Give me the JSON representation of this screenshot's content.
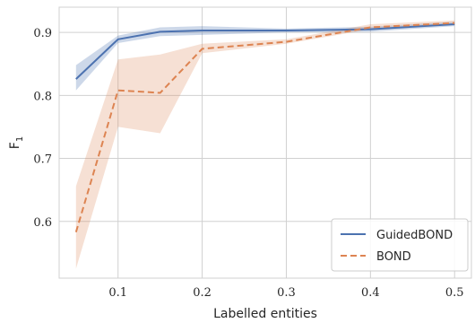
{
  "chart_data": {
    "type": "line",
    "xlabel": "Labelled entities",
    "ylabel_base": "F",
    "ylabel_sub": "1",
    "xlim": [
      0.03,
      0.52
    ],
    "ylim": [
      0.51,
      0.94
    ],
    "xticks": [
      0.1,
      0.2,
      0.3,
      0.4,
      0.5
    ],
    "xtick_labels": [
      "0.1",
      "0.2",
      "0.3",
      "0.4",
      "0.5"
    ],
    "yticks": [
      0.6,
      0.7,
      0.8,
      0.9
    ],
    "ytick_labels": [
      "0.6",
      "0.7",
      "0.8",
      "0.9"
    ],
    "grid": true,
    "legend_position": "bottom-right",
    "series": [
      {
        "name": "GuidedBOND",
        "color": "#4c72b0",
        "dash": "solid",
        "x": [
          0.05,
          0.1,
          0.15,
          0.2,
          0.3,
          0.4,
          0.5
        ],
        "y": [
          0.826,
          0.889,
          0.901,
          0.903,
          0.903,
          0.905,
          0.913
        ],
        "lower": [
          0.808,
          0.883,
          0.894,
          0.896,
          0.9,
          0.901,
          0.91
        ],
        "upper": [
          0.848,
          0.895,
          0.908,
          0.91,
          0.906,
          0.909,
          0.917
        ]
      },
      {
        "name": "BOND",
        "color": "#dd8452",
        "dash": "dashed",
        "x": [
          0.05,
          0.1,
          0.15,
          0.2,
          0.3,
          0.4,
          0.5
        ],
        "y": [
          0.583,
          0.808,
          0.804,
          0.874,
          0.885,
          0.908,
          0.915
        ],
        "lower": [
          0.525,
          0.75,
          0.74,
          0.867,
          0.882,
          0.905,
          0.912
        ],
        "upper": [
          0.656,
          0.857,
          0.865,
          0.882,
          0.889,
          0.913,
          0.919
        ]
      }
    ]
  }
}
